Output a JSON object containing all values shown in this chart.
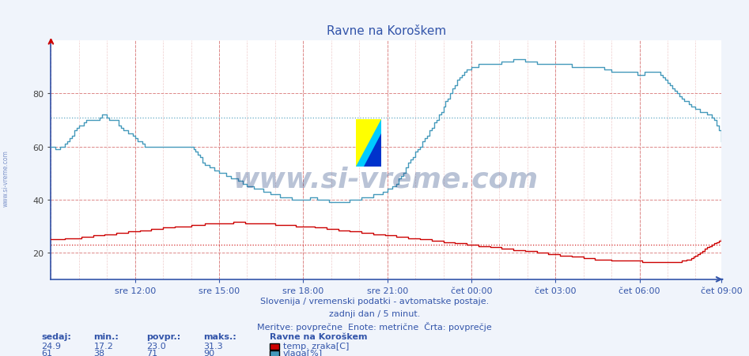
{
  "title": "Ravne na Koroškem",
  "subtitle1": "Slovenija / vremenski podatki - avtomatske postaje.",
  "subtitle2": "zadnji dan / 5 minut.",
  "subtitle3": "Meritve: povprečne  Enote: metrične  Črta: povprečje",
  "xlabel_ticks": [
    "sre 12:00",
    "sre 15:00",
    "sre 18:00",
    "sre 21:00",
    "čet 00:00",
    "čet 03:00",
    "čet 06:00",
    "čet 09:00"
  ],
  "ylabel_ticks": [
    20,
    40,
    60,
    80
  ],
  "ylim": [
    10,
    100
  ],
  "n_points": 288,
  "bg_color": "#f0f4fb",
  "plot_bg_color": "#ffffff",
  "grid_h_color": "#dd8888",
  "grid_v_color": "#dd8888",
  "grid_minor_color": "#eecccc",
  "temp_color": "#cc0000",
  "hum_color": "#4499bb",
  "temp_avg": 23.0,
  "temp_min": 17.2,
  "temp_max": 31.3,
  "temp_sedaj": 24.9,
  "hum_avg": 71,
  "hum_min": 38,
  "hum_max": 90,
  "hum_sedaj": 61,
  "legend_title": "Ravne na Koroškem",
  "legend_temp": "temp. zraka[C]",
  "legend_hum": "vlaga[%]",
  "watermark": "www.si-vreme.com",
  "watermark_color": "#1a3a7a",
  "label_color": "#3355aa",
  "tick_color": "#3355aa",
  "spine_color": "#3355aa",
  "title_color": "#3355aa"
}
